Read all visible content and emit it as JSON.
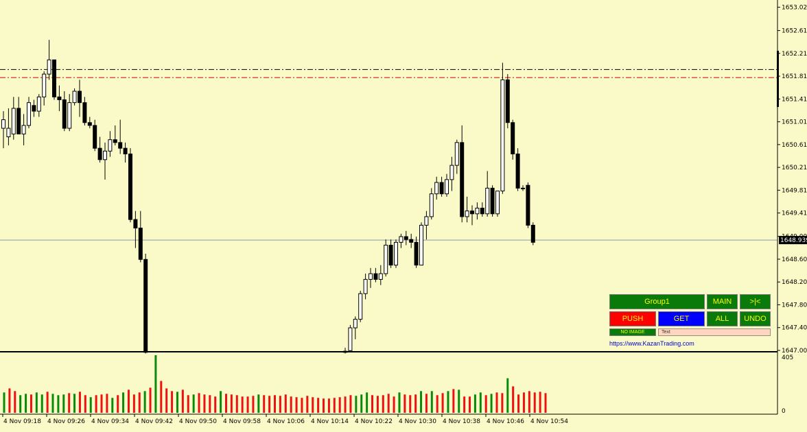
{
  "chart_data": {
    "type": "candlestick",
    "instrument_timeframe": "M1",
    "price_axis": {
      "labels": [
        "1653.024",
        "1652.614",
        "1652.214",
        "1651.814",
        "1651.414",
        "1651.014",
        "1650.614",
        "1650.214",
        "1649.814",
        "1649.414",
        "1649.004",
        "1648.604",
        "1648.204",
        "1647.804",
        "1647.404",
        "1647.004"
      ],
      "range": [
        1646.98,
        1653.15
      ]
    },
    "current_price": "1648.939",
    "horizontal_lines": [
      {
        "price": 1651.93,
        "color": "#000000",
        "style": "dash-dot"
      },
      {
        "price": 1651.79,
        "color": "#cc0000",
        "style": "dash-dot"
      }
    ],
    "time_labels": [
      "4 Nov 09:18",
      "4 Nov 09:26",
      "4 Nov 09:34",
      "4 Nov 09:42",
      "4 Nov 09:50",
      "4 Nov 09:58",
      "4 Nov 10:06",
      "4 Nov 10:14",
      "4 Nov 10:22",
      "4 Nov 10:30",
      "4 Nov 10:38",
      "4 Nov 10:46",
      "4 Nov 10:54"
    ],
    "volume_axis": {
      "max_label": "405",
      "min_label": "0",
      "range": [
        0,
        405
      ]
    },
    "candles": [
      {
        "o": 1650.9,
        "h": 1651.2,
        "l": 1650.55,
        "c": 1651.05
      },
      {
        "o": 1650.75,
        "h": 1651.25,
        "l": 1650.6,
        "c": 1650.9
      },
      {
        "o": 1650.8,
        "h": 1651.45,
        "l": 1650.7,
        "c": 1651.25
      },
      {
        "o": 1651.25,
        "h": 1651.45,
        "l": 1650.8,
        "c": 1650.8
      },
      {
        "o": 1650.8,
        "h": 1651.15,
        "l": 1650.6,
        "c": 1650.95
      },
      {
        "o": 1650.95,
        "h": 1651.45,
        "l": 1650.9,
        "c": 1651.35
      },
      {
        "o": 1651.3,
        "h": 1651.4,
        "l": 1651.1,
        "c": 1651.2
      },
      {
        "o": 1651.2,
        "h": 1651.5,
        "l": 1651.1,
        "c": 1651.45
      },
      {
        "o": 1651.45,
        "h": 1651.9,
        "l": 1651.3,
        "c": 1651.85
      },
      {
        "o": 1651.85,
        "h": 1652.45,
        "l": 1651.75,
        "c": 1652.1
      },
      {
        "o": 1652.1,
        "h": 1652.1,
        "l": 1651.4,
        "c": 1651.45
      },
      {
        "o": 1651.45,
        "h": 1651.65,
        "l": 1651.2,
        "c": 1651.4
      },
      {
        "o": 1651.4,
        "h": 1651.55,
        "l": 1650.85,
        "c": 1650.9
      },
      {
        "o": 1650.9,
        "h": 1651.5,
        "l": 1650.85,
        "c": 1651.35
      },
      {
        "o": 1651.35,
        "h": 1651.6,
        "l": 1651.3,
        "c": 1651.55
      },
      {
        "o": 1651.55,
        "h": 1651.75,
        "l": 1651.1,
        "c": 1651.35
      },
      {
        "o": 1651.35,
        "h": 1651.45,
        "l": 1650.95,
        "c": 1651.0
      },
      {
        "o": 1651.0,
        "h": 1651.1,
        "l": 1650.9,
        "c": 1650.95
      },
      {
        "o": 1650.95,
        "h": 1651.05,
        "l": 1650.5,
        "c": 1650.55
      },
      {
        "o": 1650.55,
        "h": 1650.75,
        "l": 1650.3,
        "c": 1650.35
      },
      {
        "o": 1650.35,
        "h": 1650.65,
        "l": 1650.0,
        "c": 1650.5
      },
      {
        "o": 1650.5,
        "h": 1650.85,
        "l": 1650.4,
        "c": 1650.7
      },
      {
        "o": 1650.7,
        "h": 1650.95,
        "l": 1650.6,
        "c": 1650.65
      },
      {
        "o": 1650.65,
        "h": 1651.05,
        "l": 1650.45,
        "c": 1650.55
      },
      {
        "o": 1650.55,
        "h": 1650.65,
        "l": 1650.3,
        "c": 1650.45
      },
      {
        "o": 1650.45,
        "h": 1650.55,
        "l": 1649.25,
        "c": 1649.3
      },
      {
        "o": 1649.3,
        "h": 1649.45,
        "l": 1648.8,
        "c": 1649.15
      },
      {
        "o": 1649.15,
        "h": 1649.45,
        "l": 1648.55,
        "c": 1648.6
      },
      {
        "o": 1648.6,
        "h": 1648.7,
        "l": 1646.95,
        "c": 1646.97
      }
    ],
    "candles_right": [
      {
        "o": 1646.97,
        "h": 1647.05,
        "l": 1646.95,
        "c": 1646.99
      },
      {
        "o": 1647.0,
        "h": 1647.45,
        "l": 1646.98,
        "c": 1647.4
      },
      {
        "o": 1647.4,
        "h": 1647.6,
        "l": 1647.2,
        "c": 1647.55
      },
      {
        "o": 1647.55,
        "h": 1648.05,
        "l": 1647.5,
        "c": 1648.0
      },
      {
        "o": 1648.0,
        "h": 1648.35,
        "l": 1647.9,
        "c": 1648.25
      },
      {
        "o": 1648.25,
        "h": 1648.45,
        "l": 1648.1,
        "c": 1648.35
      },
      {
        "o": 1648.35,
        "h": 1648.45,
        "l": 1648.2,
        "c": 1648.25
      },
      {
        "o": 1648.25,
        "h": 1648.5,
        "l": 1648.15,
        "c": 1648.35
      },
      {
        "o": 1648.35,
        "h": 1648.95,
        "l": 1648.3,
        "c": 1648.85
      },
      {
        "o": 1648.85,
        "h": 1648.95,
        "l": 1648.45,
        "c": 1648.5
      },
      {
        "o": 1648.5,
        "h": 1648.95,
        "l": 1648.45,
        "c": 1648.9
      },
      {
        "o": 1648.9,
        "h": 1649.05,
        "l": 1648.8,
        "c": 1649.0
      },
      {
        "o": 1649.0,
        "h": 1649.1,
        "l": 1648.85,
        "c": 1648.95
      },
      {
        "o": 1648.95,
        "h": 1649.05,
        "l": 1648.8,
        "c": 1648.9
      },
      {
        "o": 1648.9,
        "h": 1649.0,
        "l": 1648.45,
        "c": 1648.5
      },
      {
        "o": 1648.5,
        "h": 1649.25,
        "l": 1648.5,
        "c": 1649.2
      },
      {
        "o": 1649.2,
        "h": 1649.45,
        "l": 1648.95,
        "c": 1649.35
      },
      {
        "o": 1649.35,
        "h": 1649.85,
        "l": 1649.3,
        "c": 1649.75
      },
      {
        "o": 1649.75,
        "h": 1650.05,
        "l": 1649.65,
        "c": 1649.95
      },
      {
        "o": 1649.95,
        "h": 1650.05,
        "l": 1649.7,
        "c": 1649.75
      },
      {
        "o": 1649.75,
        "h": 1650.1,
        "l": 1649.7,
        "c": 1650.0
      },
      {
        "o": 1650.0,
        "h": 1650.4,
        "l": 1649.8,
        "c": 1650.25
      },
      {
        "o": 1650.25,
        "h": 1650.7,
        "l": 1650.1,
        "c": 1650.65
      },
      {
        "o": 1650.65,
        "h": 1650.95,
        "l": 1649.25,
        "c": 1649.35
      },
      {
        "o": 1649.35,
        "h": 1649.7,
        "l": 1649.25,
        "c": 1649.45
      },
      {
        "o": 1649.45,
        "h": 1649.55,
        "l": 1649.2,
        "c": 1649.4
      },
      {
        "o": 1649.4,
        "h": 1649.6,
        "l": 1649.3,
        "c": 1649.5
      },
      {
        "o": 1649.5,
        "h": 1649.6,
        "l": 1649.35,
        "c": 1649.4
      },
      {
        "o": 1649.4,
        "h": 1650.15,
        "l": 1649.35,
        "c": 1649.85
      },
      {
        "o": 1649.85,
        "h": 1649.9,
        "l": 1649.35,
        "c": 1649.4
      },
      {
        "o": 1649.4,
        "h": 1649.55,
        "l": 1649.35,
        "c": 1649.8
      },
      {
        "o": 1649.8,
        "h": 1652.05,
        "l": 1649.75,
        "c": 1651.75
      },
      {
        "o": 1651.75,
        "h": 1651.85,
        "l": 1650.9,
        "c": 1651.0
      },
      {
        "o": 1651.0,
        "h": 1651.05,
        "l": 1650.35,
        "c": 1650.45
      },
      {
        "o": 1650.45,
        "h": 1650.55,
        "l": 1649.8,
        "c": 1649.85
      },
      {
        "o": 1649.85,
        "h": 1649.9,
        "l": 1649.8,
        "c": 1649.85
      },
      {
        "o": 1649.9,
        "h": 1649.95,
        "l": 1649.15,
        "c": 1649.2
      },
      {
        "o": 1649.2,
        "h": 1649.25,
        "l": 1648.85,
        "c": 1648.9
      }
    ],
    "volumes": [
      {
        "v": 130,
        "up": true
      },
      {
        "v": 160,
        "up": false
      },
      {
        "v": 140,
        "up": false
      },
      {
        "v": 110,
        "up": true
      },
      {
        "v": 120,
        "up": true
      },
      {
        "v": 115,
        "up": false
      },
      {
        "v": 130,
        "up": true
      },
      {
        "v": 115,
        "up": true
      },
      {
        "v": 135,
        "up": false
      },
      {
        "v": 120,
        "up": true
      },
      {
        "v": 110,
        "up": true
      },
      {
        "v": 115,
        "up": true
      },
      {
        "v": 125,
        "up": false
      },
      {
        "v": 120,
        "up": true
      },
      {
        "v": 135,
        "up": false
      },
      {
        "v": 110,
        "up": false
      },
      {
        "v": 95,
        "up": true
      },
      {
        "v": 110,
        "up": false
      },
      {
        "v": 115,
        "up": false
      },
      {
        "v": 120,
        "up": false
      },
      {
        "v": 90,
        "up": true
      },
      {
        "v": 110,
        "up": false
      },
      {
        "v": 130,
        "up": true
      },
      {
        "v": 150,
        "up": false
      },
      {
        "v": 115,
        "up": false
      },
      {
        "v": 130,
        "up": false
      },
      {
        "v": 140,
        "up": true
      },
      {
        "v": 165,
        "up": false
      },
      {
        "v": 405,
        "up": true
      },
      {
        "v": 215,
        "up": false
      },
      {
        "v": 160,
        "up": false
      },
      {
        "v": 140,
        "up": false
      },
      {
        "v": 135,
        "up": true
      },
      {
        "v": 150,
        "up": false
      },
      {
        "v": 110,
        "up": false
      },
      {
        "v": 115,
        "up": true
      },
      {
        "v": 125,
        "up": false
      },
      {
        "v": 115,
        "up": false
      },
      {
        "v": 110,
        "up": false
      },
      {
        "v": 100,
        "up": false
      },
      {
        "v": 140,
        "up": true
      },
      {
        "v": 120,
        "up": false
      },
      {
        "v": 115,
        "up": false
      },
      {
        "v": 110,
        "up": false
      },
      {
        "v": 100,
        "up": false
      },
      {
        "v": 100,
        "up": false
      },
      {
        "v": 105,
        "up": false
      },
      {
        "v": 115,
        "up": true
      },
      {
        "v": 110,
        "up": false
      },
      {
        "v": 105,
        "up": false
      },
      {
        "v": 110,
        "up": false
      },
      {
        "v": 105,
        "up": false
      },
      {
        "v": 115,
        "up": false
      },
      {
        "v": 100,
        "up": false
      },
      {
        "v": 95,
        "up": false
      },
      {
        "v": 90,
        "up": false
      },
      {
        "v": 105,
        "up": false
      },
      {
        "v": 95,
        "up": false
      },
      {
        "v": 90,
        "up": false
      },
      {
        "v": 85,
        "up": false
      },
      {
        "v": 85,
        "up": false
      },
      {
        "v": 90,
        "up": false
      },
      {
        "v": 95,
        "up": false
      },
      {
        "v": 100,
        "up": false
      },
      {
        "v": 110,
        "up": false
      },
      {
        "v": 105,
        "up": true
      },
      {
        "v": 115,
        "up": true
      },
      {
        "v": 130,
        "up": true
      },
      {
        "v": 110,
        "up": false
      },
      {
        "v": 105,
        "up": false
      },
      {
        "v": 110,
        "up": false
      },
      {
        "v": 120,
        "up": false
      },
      {
        "v": 100,
        "up": false
      },
      {
        "v": 130,
        "up": true
      },
      {
        "v": 115,
        "up": false
      },
      {
        "v": 110,
        "up": false
      },
      {
        "v": 115,
        "up": false
      },
      {
        "v": 140,
        "up": true
      },
      {
        "v": 120,
        "up": false
      },
      {
        "v": 140,
        "up": true
      },
      {
        "v": 110,
        "up": false
      },
      {
        "v": 125,
        "up": false
      },
      {
        "v": 140,
        "up": true
      },
      {
        "v": 155,
        "up": false
      },
      {
        "v": 150,
        "up": true
      },
      {
        "v": 100,
        "up": false
      },
      {
        "v": 100,
        "up": false
      },
      {
        "v": 115,
        "up": true
      },
      {
        "v": 130,
        "up": true
      },
      {
        "v": 110,
        "up": false
      },
      {
        "v": 120,
        "up": true
      },
      {
        "v": 130,
        "up": false
      },
      {
        "v": 125,
        "up": false
      },
      {
        "v": 235,
        "up": true
      },
      {
        "v": 175,
        "up": false
      },
      {
        "v": 115,
        "up": false
      },
      {
        "v": 130,
        "up": false
      },
      {
        "v": 140,
        "up": false
      },
      {
        "v": 130,
        "up": false
      },
      {
        "v": 135,
        "up": false
      },
      {
        "v": 125,
        "up": false
      }
    ]
  },
  "panel": {
    "group_label": "Group1",
    "main_label": "MAIN",
    "collapse_label": ">|<",
    "push_label": "PUSH",
    "get_label": "GET",
    "all_label": "ALL",
    "undo_label": "UNDO",
    "no_image_label": "NO IMAGE",
    "text_field_value": "Text",
    "website": "https://www.KazanTrading.com"
  }
}
